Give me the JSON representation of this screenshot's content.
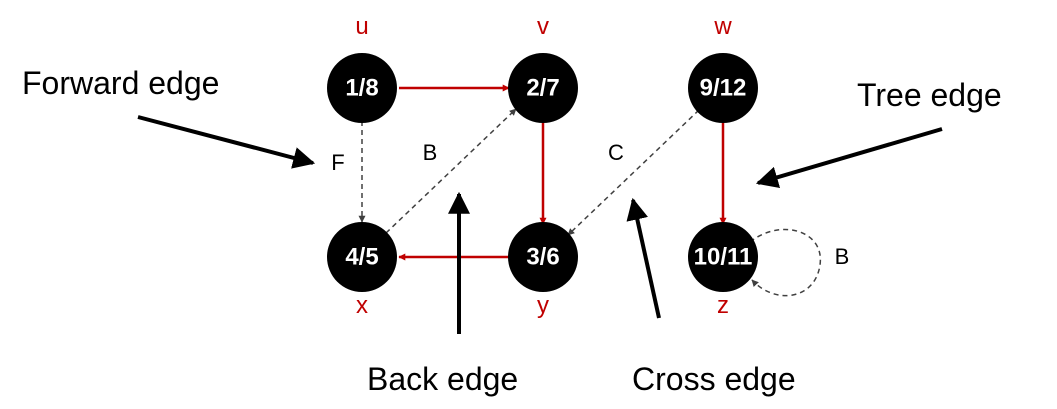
{
  "colors": {
    "tree_edge": "#c00000",
    "vertex_label": "#c00000",
    "node_fill": "#000000",
    "node_text": "#ffffff",
    "dashed_edge": "#404040",
    "annotation": "#000000"
  },
  "nodes": {
    "u": {
      "name": "u",
      "times": "1/8"
    },
    "v": {
      "name": "v",
      "times": "2/7"
    },
    "w": {
      "name": "w",
      "times": "9/12"
    },
    "x": {
      "name": "x",
      "times": "4/5"
    },
    "y": {
      "name": "y",
      "times": "3/6"
    },
    "z": {
      "name": "z",
      "times": "10/11"
    }
  },
  "edges": [
    {
      "from": "u",
      "to": "v",
      "kind": "tree"
    },
    {
      "from": "v",
      "to": "y",
      "kind": "tree"
    },
    {
      "from": "y",
      "to": "x",
      "kind": "tree"
    },
    {
      "from": "w",
      "to": "z",
      "kind": "tree"
    },
    {
      "from": "u",
      "to": "x",
      "kind": "forward",
      "label": "F"
    },
    {
      "from": "x",
      "to": "v",
      "kind": "back",
      "label": "B"
    },
    {
      "from": "w",
      "to": "y",
      "kind": "cross",
      "label": "C"
    },
    {
      "from": "z",
      "to": "z",
      "kind": "back",
      "label": "B"
    }
  ],
  "annotations": {
    "forward_edge": "Forward edge",
    "tree_edge": "Tree edge",
    "back_edge": "Back edge",
    "cross_edge": "Cross edge"
  }
}
